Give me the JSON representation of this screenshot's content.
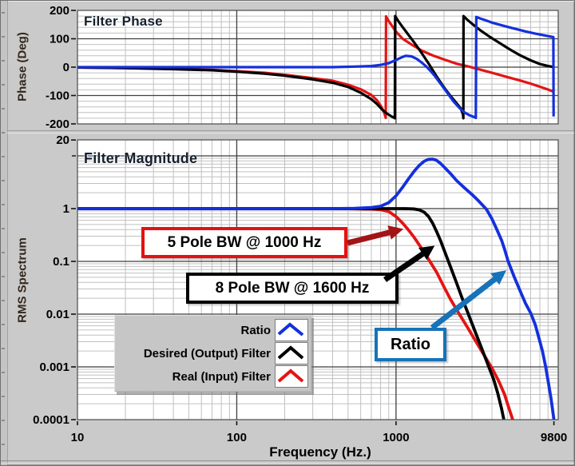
{
  "colors": {
    "panel_gray": "#cacaca",
    "plot_bg": "#ffffff",
    "grid_major": "#3f3f3f",
    "grid_minor": "#c0c0c0",
    "curve_blue": "#1430dd",
    "curve_black": "#000000",
    "curve_red": "#e31414",
    "annotation_red_border": "#e31212",
    "annotation_dark_red": "#a31515",
    "annotation_blue": "#1773b9",
    "annotation_black": "#000000"
  },
  "legend": {
    "items": [
      {
        "label": "Ratio",
        "color": "#1430dd"
      },
      {
        "label": "Desired (Output) Filter",
        "color": "#000000"
      },
      {
        "label": "Real (Input) Filter",
        "color": "#e31414"
      }
    ]
  },
  "annotations": {
    "filter5": "5 Pole BW @ 1000 Hz",
    "filter8": "8 Pole BW @ 1600 Hz",
    "ratio": "Ratio"
  },
  "chart_data": [
    {
      "id": "phase",
      "type": "line",
      "title": "Filter Phase",
      "ylabel": "Phase (Deg)",
      "x_scale": "log",
      "y_scale": "linear",
      "xlim": [
        10,
        10400
      ],
      "ylim": [
        -200,
        200
      ],
      "grid": true,
      "y_minor_step": 20,
      "x_major": [
        100,
        1000
      ],
      "y_major": [
        -100,
        0,
        100
      ],
      "yticks": [
        [
          200,
          "200"
        ],
        [
          100,
          "100"
        ],
        [
          0,
          "0"
        ],
        [
          -100,
          "-100"
        ],
        [
          -200,
          "-200"
        ]
      ],
      "series": [
        {
          "name": "Real (Input) Filter",
          "color": "#e31414",
          "points": [
            [
              10,
              -1
            ],
            [
              20,
              -3
            ],
            [
              40,
              -6
            ],
            [
              70,
              -10
            ],
            [
              100,
              -14
            ],
            [
              150,
              -20
            ],
            [
              200,
              -27
            ],
            [
              300,
              -39
            ],
            [
              400,
              -48
            ],
            [
              500,
              -62
            ],
            [
              600,
              -78
            ],
            [
              700,
              -98
            ],
            [
              760,
              -117
            ],
            [
              810,
              -140
            ],
            [
              845,
              -162
            ],
            [
              862,
              -179
            ],
            [
              866,
              179
            ],
            [
              890,
              166
            ],
            [
              940,
              147
            ],
            [
              1000,
              125
            ],
            [
              1100,
              100
            ],
            [
              1250,
              80
            ],
            [
              1450,
              58
            ],
            [
              1700,
              41
            ],
            [
              2000,
              27
            ],
            [
              2400,
              12
            ],
            [
              2900,
              1
            ],
            [
              3500,
              -11
            ],
            [
              4200,
              -23
            ],
            [
              5000,
              -35
            ],
            [
              6000,
              -47
            ],
            [
              7000,
              -58
            ],
            [
              8000,
              -69
            ],
            [
              9000,
              -79
            ],
            [
              9800,
              -87
            ]
          ]
        },
        {
          "name": "Desired (Output) Filter",
          "color": "#000000",
          "points": [
            [
              10,
              -1
            ],
            [
              20,
              -3
            ],
            [
              40,
              -7
            ],
            [
              70,
              -11
            ],
            [
              100,
              -16
            ],
            [
              150,
              -23
            ],
            [
              200,
              -30
            ],
            [
              300,
              -43
            ],
            [
              400,
              -55
            ],
            [
              500,
              -70
            ],
            [
              600,
              -90
            ],
            [
              700,
              -113
            ],
            [
              760,
              -130
            ],
            [
              820,
              -150
            ],
            [
              880,
              -164
            ],
            [
              940,
              -174
            ],
            [
              983,
              -180
            ],
            [
              987,
              180
            ],
            [
              1040,
              160
            ],
            [
              1100,
              141
            ],
            [
              1200,
              113
            ],
            [
              1300,
              87
            ],
            [
              1400,
              62
            ],
            [
              1500,
              37
            ],
            [
              1600,
              13
            ],
            [
              1700,
              -11
            ],
            [
              1800,
              -33
            ],
            [
              1900,
              -53
            ],
            [
              2000,
              -71
            ],
            [
              2200,
              -102
            ],
            [
              2400,
              -127
            ],
            [
              2550,
              -146
            ],
            [
              2630,
              -166
            ],
            [
              2645,
              -180
            ],
            [
              2652,
              180
            ],
            [
              2800,
              167
            ],
            [
              3000,
              153
            ],
            [
              3400,
              129
            ],
            [
              3900,
              106
            ],
            [
              4500,
              84
            ],
            [
              5200,
              62
            ],
            [
              6000,
              42
            ],
            [
              7000,
              24
            ],
            [
              8000,
              11
            ],
            [
              9000,
              4
            ],
            [
              9800,
              0
            ]
          ]
        },
        {
          "name": "Ratio",
          "color": "#1430dd",
          "points": [
            [
              10,
              0
            ],
            [
              200,
              0
            ],
            [
              400,
              0
            ],
            [
              550,
              2
            ],
            [
              700,
              4
            ],
            [
              800,
              8
            ],
            [
              900,
              14
            ],
            [
              1000,
              25
            ],
            [
              1080,
              34
            ],
            [
              1150,
              40
            ],
            [
              1250,
              38
            ],
            [
              1350,
              29
            ],
            [
              1450,
              16
            ],
            [
              1550,
              2
            ],
            [
              1650,
              -14
            ],
            [
              1750,
              -31
            ],
            [
              1850,
              -49
            ],
            [
              1950,
              -66
            ],
            [
              2100,
              -91
            ],
            [
              2300,
              -121
            ],
            [
              2500,
              -144
            ],
            [
              2700,
              -160
            ],
            [
              2900,
              -170
            ],
            [
              3100,
              -176
            ],
            [
              3170,
              -179
            ],
            [
              3190,
              177
            ],
            [
              3350,
              172
            ],
            [
              3650,
              165
            ],
            [
              4000,
              157
            ],
            [
              4500,
              149
            ],
            [
              5000,
              142
            ],
            [
              5700,
              134
            ],
            [
              6500,
              126
            ],
            [
              7500,
              118
            ],
            [
              8500,
              112
            ],
            [
              9300,
              108
            ],
            [
              9720,
              106
            ],
            [
              9760,
              -174
            ]
          ]
        }
      ]
    },
    {
      "id": "magnitude",
      "type": "line",
      "title": "Filter Magnitude",
      "ylabel": "RMS Spectrum",
      "xlabel": "Frequency (Hz.)",
      "x_scale": "log",
      "y_scale": "log",
      "xlim": [
        10,
        10400
      ],
      "ylim": [
        0.0001,
        20
      ],
      "grid": true,
      "x_major": [
        100,
        1000
      ],
      "y_major": [
        10,
        1,
        0.1,
        0.01,
        0.001
      ],
      "yticks": [
        [
          20,
          "20"
        ],
        [
          1,
          "1"
        ],
        [
          0.1,
          "0.1"
        ],
        [
          0.01,
          "0.01"
        ],
        [
          0.001,
          "0.001"
        ],
        [
          0.0001,
          "0.0001"
        ]
      ],
      "xticks": [
        [
          10,
          "10"
        ],
        [
          100,
          "100"
        ],
        [
          1000,
          "1000"
        ],
        [
          9800,
          "9800"
        ]
      ],
      "series": [
        {
          "name": "Real (Input) Filter",
          "color": "#e31414",
          "points": [
            [
              10,
              1
            ],
            [
              300,
              1
            ],
            [
              500,
              0.998
            ],
            [
              600,
              0.991
            ],
            [
              700,
              0.982
            ],
            [
              800,
              0.953
            ],
            [
              900,
              0.88
            ],
            [
              1000,
              0.707
            ],
            [
              1100,
              0.53
            ],
            [
              1200,
              0.39
            ],
            [
              1300,
              0.285
            ],
            [
              1400,
              0.205
            ],
            [
              1500,
              0.15
            ],
            [
              1600,
              0.11
            ],
            [
              1800,
              0.062
            ],
            [
              2000,
              0.033
            ],
            [
              2200,
              0.019
            ],
            [
              2500,
              0.0099
            ],
            [
              2800,
              0.0057
            ],
            [
              3200,
              0.0029
            ],
            [
              3600,
              0.0016
            ],
            [
              4000,
              0.00095
            ],
            [
              4400,
              0.00055
            ],
            [
              4800,
              0.0003
            ],
            [
              5100,
              0.00017
            ],
            [
              5400,
              0.0001
            ]
          ]
        },
        {
          "name": "Desired (Output) Filter",
          "color": "#000000",
          "points": [
            [
              10,
              1
            ],
            [
              600,
              1
            ],
            [
              900,
              1
            ],
            [
              1100,
              0.999
            ],
            [
              1200,
              0.996
            ],
            [
              1300,
              0.985
            ],
            [
              1400,
              0.947
            ],
            [
              1500,
              0.86
            ],
            [
              1600,
              0.707
            ],
            [
              1700,
              0.525
            ],
            [
              1800,
              0.365
            ],
            [
              1900,
              0.25
            ],
            [
              2000,
              0.167
            ],
            [
              2200,
              0.078
            ],
            [
              2400,
              0.039
            ],
            [
              2600,
              0.02
            ],
            [
              2800,
              0.0113
            ],
            [
              3000,
              0.0066
            ],
            [
              3200,
              0.004
            ],
            [
              3500,
              0.002
            ],
            [
              3800,
              0.00105
            ],
            [
              4100,
              0.00058
            ],
            [
              4350,
              0.00032
            ],
            [
              4600,
              0.00016
            ],
            [
              4750,
              0.0001
            ]
          ]
        },
        {
          "name": "Ratio",
          "color": "#1430dd",
          "points": [
            [
              10,
              1
            ],
            [
              400,
              1
            ],
            [
              550,
              1.01
            ],
            [
              700,
              1.05
            ],
            [
              800,
              1.11
            ],
            [
              900,
              1.3
            ],
            [
              1000,
              1.75
            ],
            [
              1100,
              2.55
            ],
            [
              1200,
              3.7
            ],
            [
              1300,
              5.1
            ],
            [
              1400,
              6.6
            ],
            [
              1500,
              7.9
            ],
            [
              1600,
              8.6
            ],
            [
              1700,
              8.7
            ],
            [
              1800,
              8.2
            ],
            [
              1900,
              7.2
            ],
            [
              2000,
              6.2
            ],
            [
              2200,
              4.6
            ],
            [
              2400,
              3.4
            ],
            [
              2700,
              2.45
            ],
            [
              3000,
              1.85
            ],
            [
              3300,
              1.4
            ],
            [
              3700,
              0.97
            ],
            [
              4000,
              0.64
            ],
            [
              4300,
              0.4
            ],
            [
              4600,
              0.25
            ],
            [
              4800,
              0.17
            ],
            [
              5060,
              0.1
            ],
            [
              5500,
              0.052
            ],
            [
              6000,
              0.028
            ],
            [
              6500,
              0.016
            ],
            [
              7000,
              0.0105
            ],
            [
              7500,
              0.0062
            ],
            [
              7900,
              0.0035
            ],
            [
              8300,
              0.002
            ],
            [
              8700,
              0.001
            ],
            [
              9100,
              0.00045
            ],
            [
              9400,
              0.00025
            ],
            [
              9650,
              0.00014
            ],
            [
              9800,
              0.0001
            ]
          ]
        }
      ]
    }
  ]
}
